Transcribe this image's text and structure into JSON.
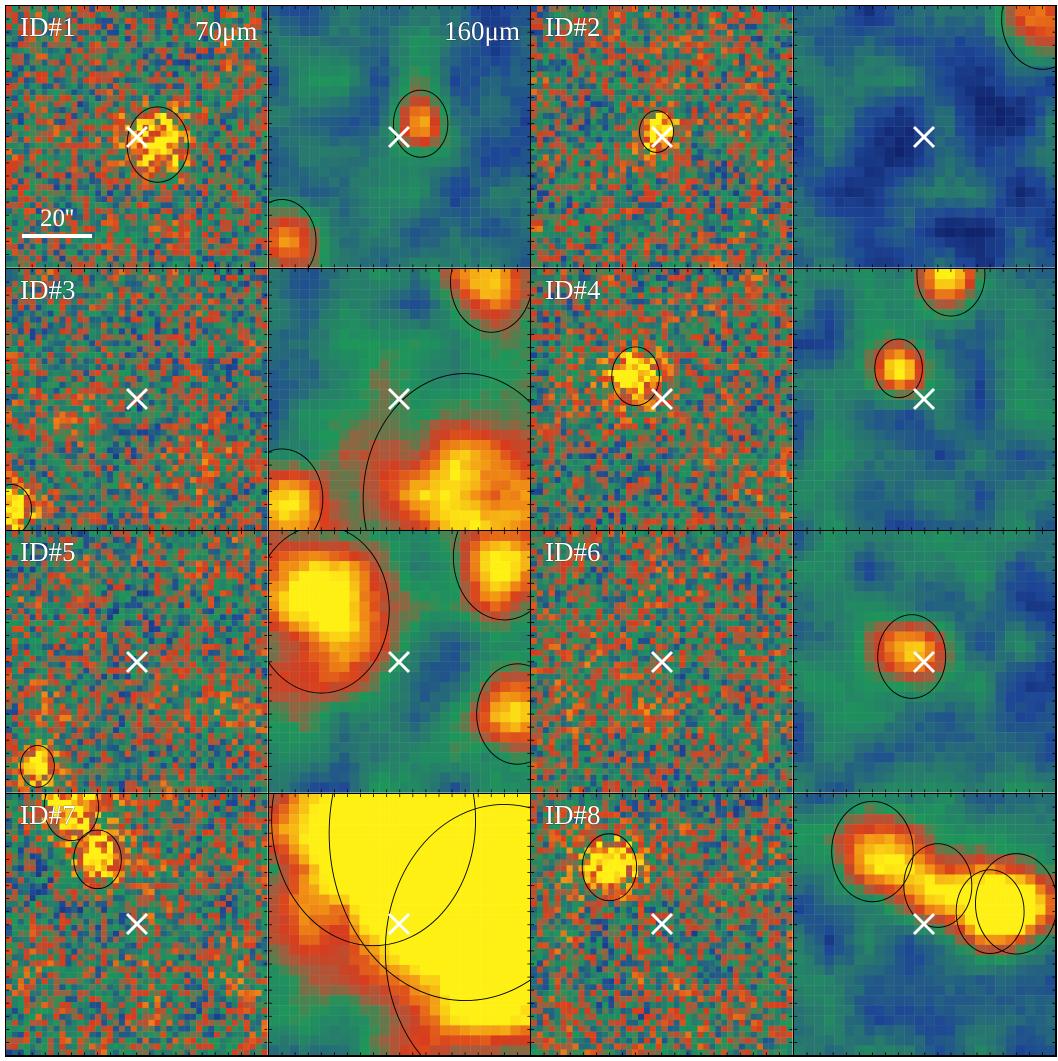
{
  "figure": {
    "rows": [
      {
        "id_label": "ID#1"
      },
      {
        "id_label": "ID#3"
      },
      {
        "id_label": "ID#4"
      },
      {
        "id_label": "ID#5"
      },
      {
        "id_label": "ID#6"
      },
      {
        "id_label": "ID#7"
      },
      {
        "id_label": "ID#8"
      },
      {
        "id_label": "ID#2"
      }
    ],
    "band_short": "70μm",
    "band_long": "160μm",
    "scalebar_label": "20''",
    "panels": [
      {
        "id": "ID#1",
        "band": "70",
        "style": "noisy",
        "bright": [
          [
            0.58,
            0.53,
            0.09
          ]
        ]
      },
      {
        "id": "ID#1",
        "band": "160",
        "style": "smooth",
        "bright": [
          [
            0.58,
            0.45,
            0.08
          ],
          [
            0.05,
            0.9,
            0.1
          ]
        ]
      },
      {
        "id": "ID#2",
        "band": "70",
        "style": "noisy",
        "bright": [
          [
            0.48,
            0.48,
            0.05
          ]
        ]
      },
      {
        "id": "ID#2",
        "band": "160",
        "style": "smooth-dark",
        "bright": [
          [
            0.95,
            0.05,
            0.12
          ]
        ]
      },
      {
        "id": "ID#3",
        "band": "70",
        "style": "noisy",
        "bright": [
          [
            0.02,
            0.92,
            0.06
          ]
        ]
      },
      {
        "id": "ID#3",
        "band": "160",
        "style": "smooth",
        "bright": [
          [
            0.75,
            0.88,
            0.3
          ],
          [
            0.05,
            0.88,
            0.12
          ],
          [
            0.85,
            0.05,
            0.12
          ]
        ]
      },
      {
        "id": "ID#4",
        "band": "70",
        "style": "noisy",
        "bright": [
          [
            0.4,
            0.41,
            0.07
          ]
        ]
      },
      {
        "id": "ID#4",
        "band": "160",
        "style": "smooth",
        "bright": [
          [
            0.4,
            0.38,
            0.07
          ],
          [
            0.6,
            0.02,
            0.1
          ]
        ]
      },
      {
        "id": "ID#5",
        "band": "70",
        "style": "noisy",
        "bright": [
          [
            0.12,
            0.9,
            0.05
          ]
        ]
      },
      {
        "id": "ID#5",
        "band": "160",
        "style": "smooth-red",
        "bright": [
          [
            0.2,
            0.3,
            0.2
          ],
          [
            0.9,
            0.1,
            0.15
          ],
          [
            0.95,
            0.7,
            0.12
          ]
        ]
      },
      {
        "id": "ID#6",
        "band": "70",
        "style": "noisy",
        "bright": []
      },
      {
        "id": "ID#6",
        "band": "160",
        "style": "smooth",
        "bright": [
          [
            0.45,
            0.48,
            0.1
          ]
        ]
      },
      {
        "id": "ID#7",
        "band": "70",
        "style": "noisy",
        "bright": [
          [
            0.25,
            0.05,
            0.08
          ],
          [
            0.35,
            0.25,
            0.07
          ]
        ]
      },
      {
        "id": "ID#7",
        "band": "160",
        "style": "smooth-hot",
        "bright": [
          [
            0.75,
            0.15,
            0.4
          ],
          [
            0.9,
            0.6,
            0.35
          ],
          [
            0.4,
            0.1,
            0.3
          ]
        ]
      },
      {
        "id": "ID#8",
        "band": "70",
        "style": "noisy",
        "bright": [
          [
            0.3,
            0.28,
            0.08
          ]
        ]
      },
      {
        "id": "ID#8",
        "band": "160",
        "style": "smooth",
        "bright": [
          [
            0.3,
            0.22,
            0.12
          ],
          [
            0.55,
            0.35,
            0.1
          ],
          [
            0.75,
            0.45,
            0.1
          ],
          [
            0.85,
            0.42,
            0.12
          ]
        ]
      }
    ]
  }
}
